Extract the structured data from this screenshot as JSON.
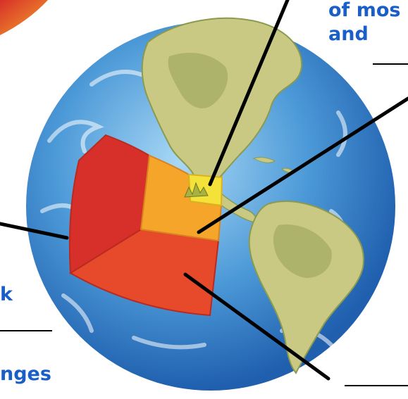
{
  "labels": {
    "top_right_line1": "of mos",
    "top_right_line2": "and",
    "left_fragment": "k",
    "bottom_left": "nges"
  },
  "colors": {
    "ocean_light": "#a9d8f5",
    "ocean_mid": "#4d9ad8",
    "ocean_dark": "#1f5fae",
    "land": "#c9c984",
    "land_dark": "#8b9a4e",
    "crust": "#f4e23a",
    "upper_mantle": "#f5a52a",
    "lower_mantle": "#d7302a",
    "outer_core": "#e64a2b",
    "label_blue": "#1a5fc8",
    "leader_line": "#000000"
  }
}
